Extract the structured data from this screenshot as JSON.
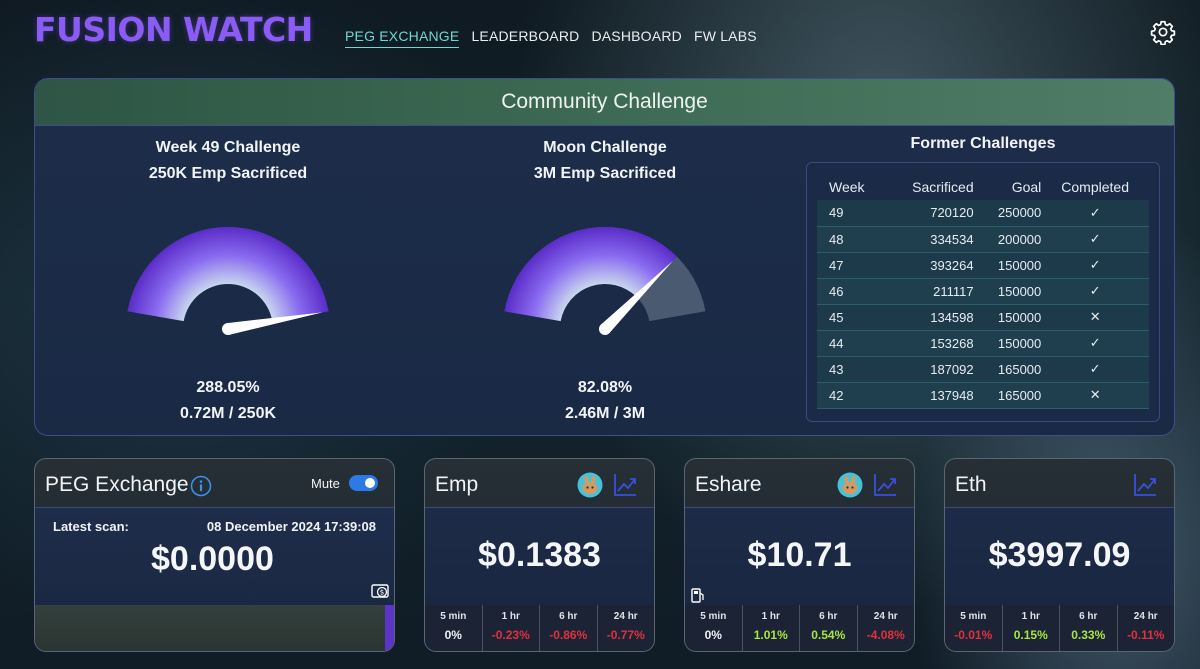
{
  "header": {
    "logo": "FUSION WATCH",
    "nav": [
      {
        "label": "PEG EXCHANGE",
        "active": true
      },
      {
        "label": "LEADERBOARD",
        "active": false
      },
      {
        "label": "DASHBOARD",
        "active": false
      },
      {
        "label": "FW LABS",
        "active": false
      }
    ],
    "settings_icon": "gear-icon"
  },
  "community": {
    "title": "Community Challenge",
    "week_challenge": {
      "title_line1": "Week 49 Challenge",
      "title_line2": "250K Emp Sacrificed",
      "percent": "288.05%",
      "progress": "0.72M / 250K",
      "fill_fraction": 1.0
    },
    "moon_challenge": {
      "title_line1": "Moon Challenge",
      "title_line2": "3M Emp Sacrificed",
      "percent": "82.08%",
      "progress": "2.46M / 3M",
      "fill_fraction": 0.8208
    },
    "former": {
      "title": "Former Challenges",
      "columns": [
        "Week",
        "Sacrificed",
        "Goal",
        "Completed"
      ],
      "rows": [
        {
          "week": "49",
          "sacrificed": "720120",
          "goal": "250000",
          "completed": true
        },
        {
          "week": "48",
          "sacrificed": "334534",
          "goal": "200000",
          "completed": true
        },
        {
          "week": "47",
          "sacrificed": "393264",
          "goal": "150000",
          "completed": true
        },
        {
          "week": "46",
          "sacrificed": "211117",
          "goal": "150000",
          "completed": true
        },
        {
          "week": "45",
          "sacrificed": "134598",
          "goal": "150000",
          "completed": false
        },
        {
          "week": "44",
          "sacrificed": "153268",
          "goal": "150000",
          "completed": true
        },
        {
          "week": "43",
          "sacrificed": "187092",
          "goal": "165000",
          "completed": true
        },
        {
          "week": "42",
          "sacrificed": "137948",
          "goal": "165000",
          "completed": false
        }
      ]
    }
  },
  "peg": {
    "title": "PEG Exchange",
    "mute_label": "Mute",
    "mute_on": true,
    "scan_label": "Latest scan:",
    "scan_date": "08 December 2024 17:39:08",
    "price": "$0.0000"
  },
  "tokens": [
    {
      "name": "Emp",
      "price": "$0.1383",
      "pancake": true,
      "stats": [
        {
          "label": "5 min",
          "value": "0%",
          "tone": "white"
        },
        {
          "label": "1 hr",
          "value": "-0.23%",
          "tone": "red"
        },
        {
          "label": "6 hr",
          "value": "-0.86%",
          "tone": "red"
        },
        {
          "label": "24 hr",
          "value": "-0.77%",
          "tone": "red"
        }
      ]
    },
    {
      "name": "Eshare",
      "price": "$10.71",
      "pancake": true,
      "stats": [
        {
          "label": "5 min",
          "value": "0%",
          "tone": "white"
        },
        {
          "label": "1 hr",
          "value": "1.01%",
          "tone": "green"
        },
        {
          "label": "6 hr",
          "value": "0.54%",
          "tone": "green"
        },
        {
          "label": "24 hr",
          "value": "-4.08%",
          "tone": "red"
        }
      ]
    },
    {
      "name": "Eth",
      "price": "$3997.09",
      "pancake": false,
      "stats": [
        {
          "label": "5 min",
          "value": "-0.01%",
          "tone": "red"
        },
        {
          "label": "1 hr",
          "value": "0.15%",
          "tone": "green"
        },
        {
          "label": "6 hr",
          "value": "0.33%",
          "tone": "green"
        },
        {
          "label": "24 hr",
          "value": "-0.11%",
          "tone": "red"
        }
      ]
    }
  ],
  "colors": {
    "accent": "#6fd7d2",
    "brand": "#8a5cf5",
    "gauge_fill": "#7b46e8",
    "gauge_empty": "#4a5a70"
  }
}
